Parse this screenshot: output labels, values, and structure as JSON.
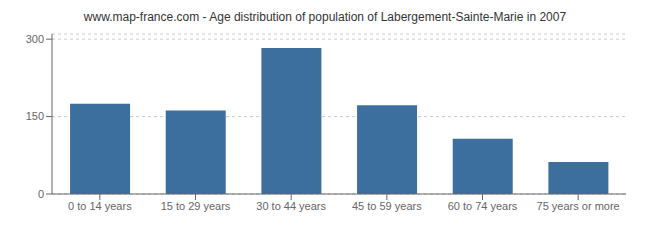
{
  "chart_data": {
    "type": "bar",
    "title": "www.map-france.com - Age distribution of population of Labergement-Sainte-Marie in 2007",
    "categories": [
      "0 to 14 years",
      "15 to 29 years",
      "30 to 44 years",
      "45 to 59 years",
      "60 to 74 years",
      "75 years or more"
    ],
    "values": [
      175,
      162,
      283,
      172,
      107,
      62
    ],
    "color": "#3d6f9e",
    "ylim": [
      0,
      310
    ],
    "yticks": [
      0,
      150,
      300
    ],
    "grid": true
  }
}
